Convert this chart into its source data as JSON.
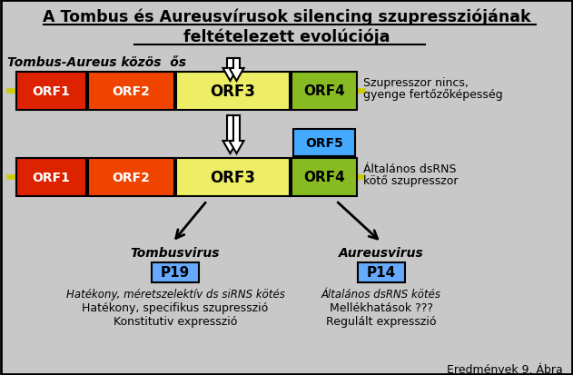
{
  "title_line1": "A Tombus és Aureusvírusok silencing szupressziójának",
  "title_line2": "feltételezett evolúciója",
  "background_color": "#c8c8c8",
  "common_ancestor_label": "Tombus-Aureus közös  ős",
  "row1_annotation_line1": "Szupresszor nincs,",
  "row1_annotation_line2": "gyenge fertőzőképesség",
  "row2_annotation_line1": "Általános dsRNS",
  "row2_annotation_line2": "kötő szupresszor",
  "tombusvirus_label": "Tombusvirus",
  "aureusvirus_label": "Aureusvirus",
  "p19_label": "P19",
  "p14_label": "P14",
  "tombus_text1": "Hatékony, méretszelektív ds siRNS kötés",
  "tombus_text2": "Hatékony, specifikus szupresszió",
  "tombus_text3": "Konstitutiv expresszió",
  "aureus_text1": "Általános dsRNS kötés",
  "aureus_text2": "Mellékhatások ???",
  "aureus_text3": "Regulált expresszió",
  "footer": "Eredmények 9. Ábra",
  "orf1_color": "#dd2200",
  "orf2_color": "#ee4400",
  "orf3_color": "#eeee66",
  "orf4_color": "#88bb22",
  "orf5_color": "#44aaff",
  "p_box_color": "#66aaff",
  "line_color": "#cccc00"
}
